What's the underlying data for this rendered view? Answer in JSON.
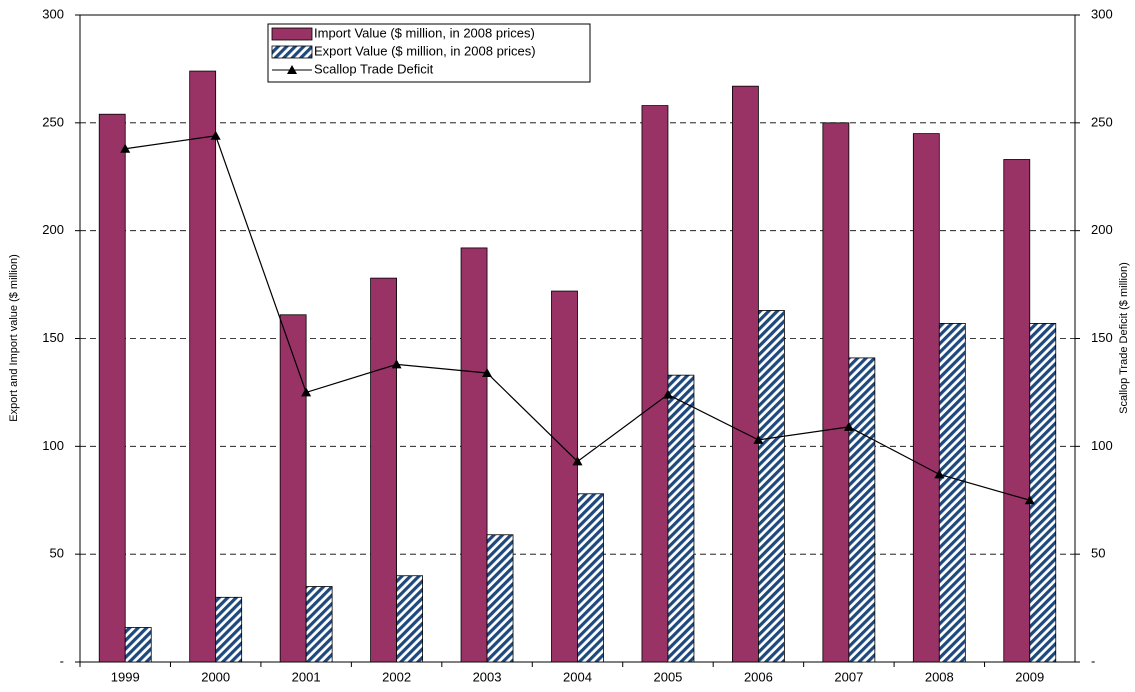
{
  "chart_data": {
    "type": "bar",
    "categories": [
      "1999",
      "2000",
      "2001",
      "2002",
      "2003",
      "2004",
      "2005",
      "2006",
      "2007",
      "2008",
      "2009"
    ],
    "series": [
      {
        "name": "Import Value ($ million, in 2008 prices)",
        "type": "bar",
        "color": "#993366",
        "values": [
          254,
          274,
          161,
          178,
          192,
          172,
          258,
          267,
          250,
          245,
          233
        ]
      },
      {
        "name": "Export Value ($ million, in 2008 prices)",
        "type": "bar",
        "color": "#1f497d",
        "pattern": "hatch",
        "values": [
          16,
          30,
          35,
          40,
          59,
          78,
          133,
          163,
          141,
          157,
          157
        ]
      },
      {
        "name": "Scallop Trade Deficit",
        "type": "line",
        "color": "#000000",
        "marker": "triangle",
        "axis": "y2",
        "values": [
          238,
          244,
          125,
          138,
          134,
          93,
          124,
          103,
          109,
          87,
          75
        ]
      }
    ],
    "ylabel": "Export and Import value ($ million)",
    "y2label": "Scallop Trade Deficit ($ million)",
    "ylim": [
      0,
      300
    ],
    "yticks": [
      {
        "value": 0,
        "label": "-"
      },
      50,
      100,
      150,
      200,
      250,
      300
    ],
    "y2lim": [
      0,
      300
    ],
    "y2ticks": [
      {
        "value": 0,
        "label": "-"
      },
      50,
      100,
      150,
      200,
      250,
      300
    ],
    "grid": true,
    "legend": "top"
  }
}
